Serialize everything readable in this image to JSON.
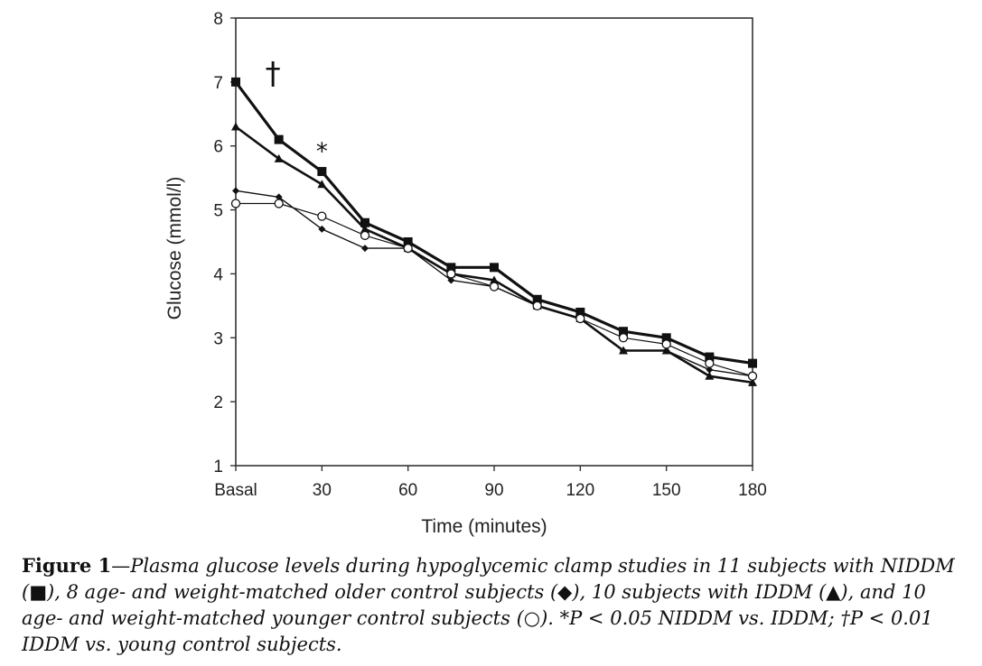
{
  "chart_data": {
    "type": "line",
    "title": "",
    "xlabel": "Time (minutes)",
    "ylabel": "Glucose (mmol/l)",
    "x": [
      0,
      15,
      30,
      45,
      60,
      75,
      90,
      105,
      120,
      135,
      150,
      165,
      180
    ],
    "x_tick_values": [
      0,
      30,
      60,
      90,
      120,
      150,
      180
    ],
    "x_tick_labels": [
      "Basal",
      "30",
      "60",
      "90",
      "120",
      "150",
      "180"
    ],
    "y_tick_values": [
      1,
      2,
      3,
      4,
      5,
      6,
      7,
      8
    ],
    "y_tick_labels": [
      "1",
      "2",
      "3",
      "4",
      "5",
      "6",
      "7",
      "8"
    ],
    "xlim": [
      0,
      180
    ],
    "ylim": [
      1,
      8
    ],
    "grid": false,
    "series": [
      {
        "marker": "square",
        "color": "#111111",
        "values": [
          7.0,
          6.1,
          5.6,
          4.8,
          4.5,
          4.1,
          4.1,
          3.6,
          3.4,
          3.1,
          3.0,
          2.7,
          2.6
        ]
      },
      {
        "marker": "triangle",
        "color": "#111111",
        "values": [
          6.3,
          5.8,
          5.4,
          4.7,
          4.4,
          4.0,
          3.9,
          3.5,
          3.3,
          2.8,
          2.8,
          2.4,
          2.3
        ]
      },
      {
        "marker": "diamond",
        "color": "#111111",
        "values": [
          5.3,
          5.2,
          4.7,
          4.4,
          4.4,
          3.9,
          3.8,
          3.5,
          3.3,
          2.8,
          2.8,
          2.5,
          2.4
        ]
      },
      {
        "marker": "circle-open",
        "color": "#111111",
        "values": [
          5.1,
          5.1,
          4.9,
          4.6,
          4.4,
          4.0,
          3.8,
          3.5,
          3.3,
          3.0,
          2.9,
          2.6,
          2.4
        ]
      }
    ],
    "annotations": [
      {
        "text": "†",
        "x": 6,
        "y": 7.12
      },
      {
        "text": "*",
        "x": 30,
        "y": 5.93
      }
    ]
  },
  "caption": {
    "figure_label": "Figure 1",
    "text": "—Plasma glucose levels during hypoglycemic clamp studies in 11 subjects with NIDDM (■), 8 age- and weight-matched older control subjects (◆), 10 subjects with IDDM (▲), and 10 age- and weight-matched younger control subjects (○). *P < 0.05 NIDDM vs. IDDM; †P < 0.01 IDDM vs. young control subjects."
  }
}
